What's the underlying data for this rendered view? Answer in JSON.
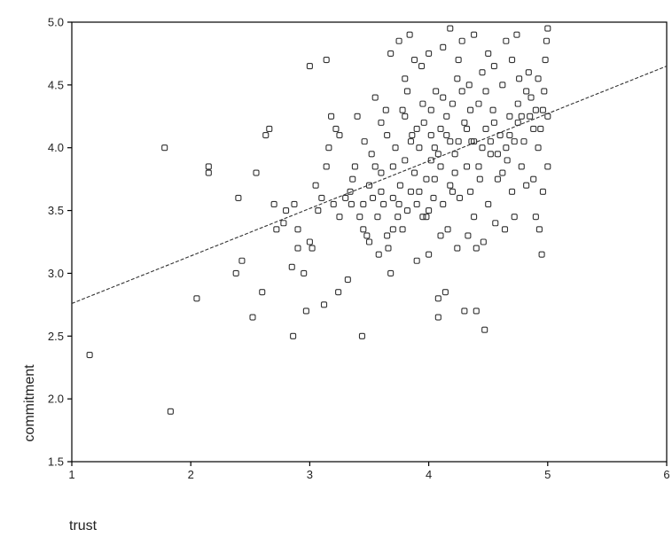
{
  "chart_data": {
    "type": "scatter",
    "title": "",
    "xlabel": "trust",
    "ylabel": "commitment",
    "xlim": [
      1,
      6
    ],
    "ylim": [
      1.5,
      5.0
    ],
    "x_ticks": [
      "1",
      "2",
      "3",
      "4",
      "5",
      "6"
    ],
    "y_ticks": [
      "1.5",
      "2.0",
      "2.5",
      "3.0",
      "3.5",
      "4.0",
      "4.5",
      "5.0"
    ],
    "grid": false,
    "legend": "none",
    "marker": "small-open-square",
    "colors": {
      "points": "#333333",
      "fit_line": "#333333",
      "frame": "#000000"
    },
    "fit_line": {
      "style": "dashed",
      "x": [
        1,
        6
      ],
      "y": [
        2.76,
        4.65
      ]
    },
    "points": [
      [
        1.15,
        2.35
      ],
      [
        1.78,
        4.0
      ],
      [
        1.83,
        1.9
      ],
      [
        2.05,
        2.8
      ],
      [
        2.15,
        3.85
      ],
      [
        2.15,
        3.8
      ],
      [
        2.38,
        3.0
      ],
      [
        2.4,
        3.6
      ],
      [
        2.43,
        3.1
      ],
      [
        2.52,
        2.65
      ],
      [
        2.55,
        3.8
      ],
      [
        2.6,
        2.85
      ],
      [
        2.63,
        4.1
      ],
      [
        2.66,
        4.15
      ],
      [
        2.7,
        3.55
      ],
      [
        2.72,
        3.35
      ],
      [
        2.78,
        3.4
      ],
      [
        2.8,
        3.5
      ],
      [
        2.85,
        3.05
      ],
      [
        2.86,
        2.5
      ],
      [
        2.87,
        3.55
      ],
      [
        2.9,
        3.35
      ],
      [
        2.9,
        3.2
      ],
      [
        2.95,
        3.0
      ],
      [
        2.97,
        2.7
      ],
      [
        3.0,
        4.65
      ],
      [
        3.0,
        3.25
      ],
      [
        3.02,
        3.2
      ],
      [
        3.05,
        3.7
      ],
      [
        3.07,
        3.5
      ],
      [
        3.1,
        3.6
      ],
      [
        3.12,
        2.75
      ],
      [
        3.14,
        3.85
      ],
      [
        3.14,
        4.7
      ],
      [
        3.16,
        4.0
      ],
      [
        3.18,
        4.25
      ],
      [
        3.2,
        3.55
      ],
      [
        3.22,
        4.15
      ],
      [
        3.24,
        2.85
      ],
      [
        3.25,
        4.1
      ],
      [
        3.25,
        3.45
      ],
      [
        3.3,
        3.6
      ],
      [
        3.32,
        2.95
      ],
      [
        3.34,
        3.65
      ],
      [
        3.36,
        3.75
      ],
      [
        3.38,
        3.85
      ],
      [
        3.4,
        4.25
      ],
      [
        3.42,
        3.45
      ],
      [
        3.44,
        2.5
      ],
      [
        3.45,
        3.55
      ],
      [
        3.46,
        4.05
      ],
      [
        3.48,
        3.3
      ],
      [
        3.5,
        3.7
      ],
      [
        3.5,
        3.25
      ],
      [
        3.52,
        3.95
      ],
      [
        3.53,
        3.6
      ],
      [
        3.55,
        4.4
      ],
      [
        3.57,
        3.45
      ],
      [
        3.58,
        3.15
      ],
      [
        3.6,
        3.8
      ],
      [
        3.6,
        4.2
      ],
      [
        3.62,
        3.55
      ],
      [
        3.64,
        4.3
      ],
      [
        3.65,
        3.3
      ],
      [
        3.66,
        3.2
      ],
      [
        3.68,
        3.0
      ],
      [
        3.68,
        4.75
      ],
      [
        3.7,
        3.6
      ],
      [
        3.7,
        3.85
      ],
      [
        3.72,
        4.0
      ],
      [
        3.74,
        3.45
      ],
      [
        3.75,
        4.85
      ],
      [
        3.76,
        3.7
      ],
      [
        3.78,
        3.35
      ],
      [
        3.78,
        4.3
      ],
      [
        3.8,
        4.55
      ],
      [
        3.8,
        3.9
      ],
      [
        3.82,
        4.45
      ],
      [
        3.82,
        3.5
      ],
      [
        3.84,
        4.9
      ],
      [
        3.85,
        3.65
      ],
      [
        3.86,
        4.1
      ],
      [
        3.88,
        3.8
      ],
      [
        3.88,
        4.7
      ],
      [
        3.9,
        3.1
      ],
      [
        3.9,
        3.55
      ],
      [
        3.92,
        4.0
      ],
      [
        3.94,
        4.65
      ],
      [
        3.95,
        3.45
      ],
      [
        3.96,
        4.2
      ],
      [
        3.98,
        3.75
      ],
      [
        4.0,
        4.75
      ],
      [
        4.0,
        3.15
      ],
      [
        4.02,
        3.9
      ],
      [
        4.02,
        4.3
      ],
      [
        4.04,
        3.6
      ],
      [
        4.05,
        4.0
      ],
      [
        4.06,
        4.45
      ],
      [
        4.08,
        2.8
      ],
      [
        4.08,
        2.65
      ],
      [
        4.1,
        3.85
      ],
      [
        4.1,
        4.15
      ],
      [
        4.12,
        3.55
      ],
      [
        4.12,
        4.8
      ],
      [
        4.14,
        2.85
      ],
      [
        4.15,
        4.1
      ],
      [
        4.16,
        3.35
      ],
      [
        4.18,
        3.7
      ],
      [
        4.18,
        4.95
      ],
      [
        4.2,
        4.35
      ],
      [
        4.22,
        3.95
      ],
      [
        4.24,
        3.2
      ],
      [
        4.24,
        4.55
      ],
      [
        4.25,
        4.7
      ],
      [
        4.26,
        3.6
      ],
      [
        4.28,
        4.85
      ],
      [
        4.3,
        2.7
      ],
      [
        4.3,
        4.2
      ],
      [
        4.32,
        3.85
      ],
      [
        4.33,
        3.3
      ],
      [
        4.34,
        4.5
      ],
      [
        4.35,
        3.65
      ],
      [
        4.36,
        4.05
      ],
      [
        4.38,
        3.45
      ],
      [
        4.38,
        4.9
      ],
      [
        4.4,
        2.7
      ],
      [
        4.4,
        3.2
      ],
      [
        4.42,
        4.35
      ],
      [
        4.43,
        3.75
      ],
      [
        4.45,
        4.6
      ],
      [
        4.46,
        3.25
      ],
      [
        4.47,
        2.55
      ],
      [
        4.48,
        4.15
      ],
      [
        4.5,
        3.55
      ],
      [
        4.5,
        4.75
      ],
      [
        4.52,
        3.95
      ],
      [
        4.54,
        4.3
      ],
      [
        4.55,
        4.65
      ],
      [
        4.56,
        3.4
      ],
      [
        4.58,
        3.75
      ],
      [
        4.6,
        4.1
      ],
      [
        4.62,
        4.5
      ],
      [
        4.64,
        3.35
      ],
      [
        4.65,
        4.85
      ],
      [
        4.66,
        3.9
      ],
      [
        4.68,
        4.25
      ],
      [
        4.7,
        3.65
      ],
      [
        4.7,
        4.7
      ],
      [
        4.72,
        3.45
      ],
      [
        4.74,
        4.9
      ],
      [
        4.75,
        4.2
      ],
      [
        4.76,
        4.55
      ],
      [
        4.78,
        3.85
      ],
      [
        4.8,
        4.05
      ],
      [
        4.82,
        3.7
      ],
      [
        4.84,
        4.6
      ],
      [
        4.86,
        4.4
      ],
      [
        4.88,
        3.75
      ],
      [
        4.9,
        4.3
      ],
      [
        4.9,
        3.45
      ],
      [
        4.92,
        4.0
      ],
      [
        4.93,
        3.35
      ],
      [
        4.94,
        4.15
      ],
      [
        4.95,
        3.15
      ],
      [
        4.96,
        3.65
      ],
      [
        4.97,
        4.45
      ],
      [
        4.98,
        4.7
      ],
      [
        4.99,
        4.85
      ],
      [
        5.0,
        4.95
      ],
      [
        5.0,
        4.25
      ],
      [
        5.0,
        3.85
      ],
      [
        4.0,
        3.5
      ],
      [
        4.05,
        3.75
      ],
      [
        4.1,
        3.3
      ],
      [
        3.95,
        4.35
      ],
      [
        4.15,
        4.25
      ],
      [
        4.2,
        3.65
      ],
      [
        3.85,
        4.05
      ],
      [
        3.9,
        4.15
      ],
      [
        4.25,
        4.05
      ],
      [
        4.35,
        4.3
      ],
      [
        4.45,
        4.0
      ],
      [
        4.55,
        4.2
      ],
      [
        4.65,
        4.0
      ],
      [
        4.75,
        4.35
      ],
      [
        4.85,
        4.25
      ],
      [
        3.7,
        3.35
      ],
      [
        3.75,
        3.55
      ],
      [
        3.6,
        3.65
      ],
      [
        3.55,
        3.85
      ],
      [
        3.45,
        3.35
      ],
      [
        3.35,
        3.55
      ],
      [
        3.65,
        4.1
      ],
      [
        3.8,
        4.25
      ],
      [
        3.92,
        3.65
      ],
      [
        3.98,
        3.45
      ],
      [
        4.02,
        4.1
      ],
      [
        4.08,
        3.95
      ],
      [
        4.12,
        4.4
      ],
      [
        4.18,
        4.05
      ],
      [
        4.22,
        3.8
      ],
      [
        4.28,
        4.45
      ],
      [
        4.32,
        4.15
      ],
      [
        4.38,
        4.05
      ],
      [
        4.42,
        3.85
      ],
      [
        4.48,
        4.45
      ],
      [
        4.52,
        4.05
      ],
      [
        4.58,
        3.95
      ],
      [
        4.62,
        3.8
      ],
      [
        4.68,
        4.1
      ],
      [
        4.72,
        4.05
      ],
      [
        4.78,
        4.25
      ],
      [
        4.82,
        4.45
      ],
      [
        4.88,
        4.15
      ],
      [
        4.92,
        4.55
      ],
      [
        4.96,
        4.3
      ]
    ]
  }
}
